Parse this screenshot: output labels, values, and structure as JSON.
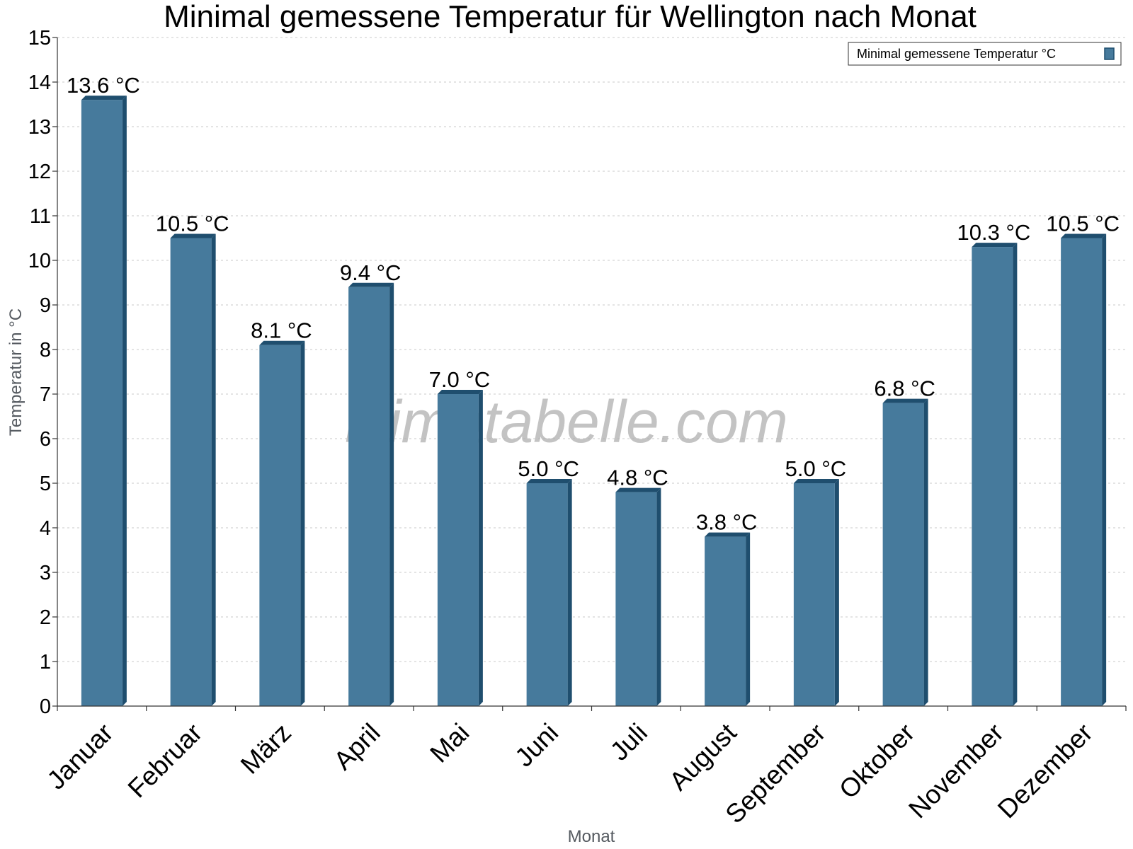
{
  "chart_data": {
    "type": "bar",
    "title": "Minimal gemessene Temperatur für Wellington nach Monat",
    "xlabel": "Monat",
    "ylabel": "Temperatur in °C",
    "ylim": [
      0,
      15
    ],
    "y_ticks": [
      0,
      1,
      2,
      3,
      4,
      5,
      6,
      7,
      8,
      9,
      10,
      11,
      12,
      13,
      14,
      15
    ],
    "grid": true,
    "legend_position": "top-right",
    "categories": [
      "Januar",
      "Februar",
      "März",
      "April",
      "Mai",
      "Juni",
      "Juli",
      "August",
      "September",
      "Oktober",
      "November",
      "Dezember"
    ],
    "series": [
      {
        "name": "Minimal gemessene Temperatur °C",
        "values": [
          13.6,
          10.5,
          8.1,
          9.4,
          7.0,
          5.0,
          4.8,
          3.8,
          5.0,
          6.8,
          10.3,
          10.5
        ],
        "data_labels": [
          "13.6 °C",
          "10.5 °C",
          "8.1 °C",
          "9.4 °C",
          "7.0 °C",
          "5.0 °C",
          "4.8 °C",
          "3.8 °C",
          "5.0 °C",
          "6.8 °C",
          "10.3 °C",
          "10.5 °C"
        ],
        "color": "#467a9c",
        "edge_color": "#1f4e6e"
      }
    ]
  },
  "watermark": "klimatabelle.com"
}
